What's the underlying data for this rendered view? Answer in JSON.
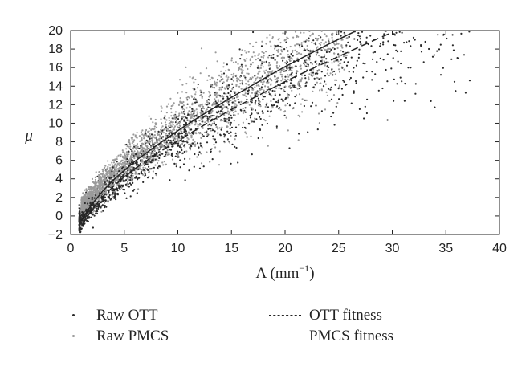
{
  "chart_data": {
    "type": "scatter",
    "xlabel_base": "Λ (mm",
    "xlabel_sup": "−1",
    "xlabel_end": ")",
    "ylabel": "μ",
    "xlim": [
      0,
      40
    ],
    "ylim": [
      -2,
      20
    ],
    "xticks": [
      0,
      5,
      10,
      15,
      20,
      25,
      30,
      35,
      40
    ],
    "yticks": [
      -2,
      0,
      2,
      4,
      6,
      8,
      10,
      12,
      14,
      16,
      18,
      20
    ],
    "grid": false,
    "legend_position": "bottom",
    "series": [
      {
        "name": "Raw OTT",
        "kind": "scatter",
        "color": "#2a2a2a",
        "approx_trend": {
          "a": -1.9,
          "b": 2.1,
          "p": 0.7
        },
        "x_range": [
          0.8,
          37.5
        ],
        "approx_point_count": 1700
      },
      {
        "name": "Raw PMCS",
        "kind": "scatter",
        "color": "#9a9a9a",
        "approx_trend": {
          "a": -1.5,
          "b": 2.15,
          "p": 0.7
        },
        "x_range": [
          1.0,
          26.0
        ],
        "approx_point_count": 2600
      },
      {
        "name": "OTT fitness",
        "kind": "line",
        "style": "dashed",
        "color": "#222222",
        "x": [
          1,
          2,
          3,
          4,
          5,
          6,
          8,
          10,
          12,
          15,
          18,
          20,
          22,
          25,
          28,
          30
        ],
        "y": [
          -1.1,
          0.7,
          2.1,
          3.2,
          4.2,
          5.1,
          6.7,
          8.1,
          9.5,
          11.5,
          13.3,
          14.5,
          15.6,
          17.2,
          18.8,
          19.8
        ]
      },
      {
        "name": "PMCS fitness",
        "kind": "line",
        "style": "solid",
        "color": "#222222",
        "x": [
          1,
          2,
          3,
          4,
          5,
          6,
          8,
          10,
          12,
          15,
          18,
          20,
          22,
          24,
          26.5
        ],
        "y": [
          -0.5,
          1.3,
          2.7,
          3.9,
          4.9,
          5.9,
          7.6,
          9.2,
          10.7,
          12.8,
          14.8,
          16.1,
          17.3,
          18.5,
          19.9
        ]
      }
    ]
  },
  "legend": {
    "raw_ott": "Raw OTT",
    "raw_pmcs": "Raw PMCS",
    "ott_fitness": "OTT fitness",
    "pmcs_fitness": "PMCS fitness"
  }
}
